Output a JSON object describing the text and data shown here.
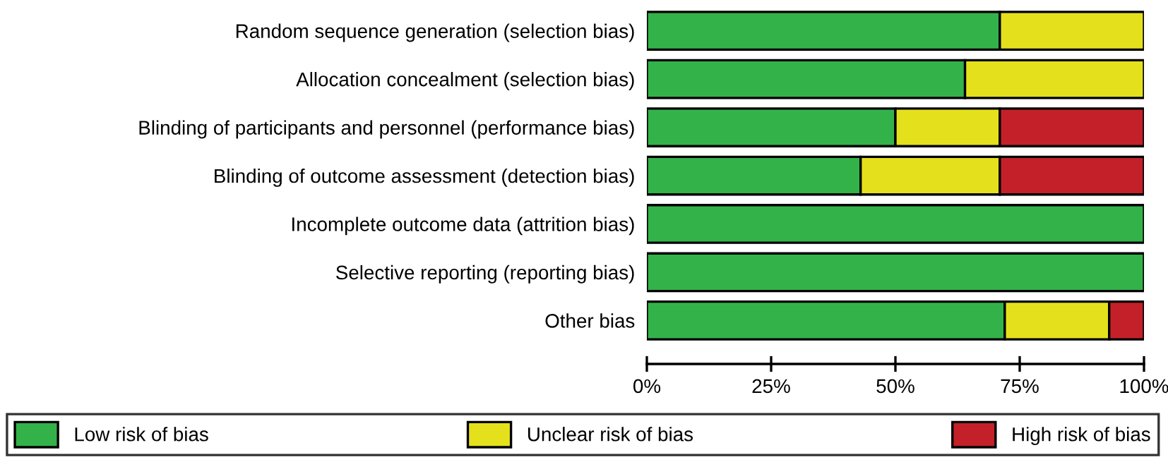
{
  "chart_data": {
    "type": "bar",
    "orientation": "horizontal",
    "stacked": true,
    "categories": [
      "Random sequence generation (selection bias)",
      "Allocation concealment (selection bias)",
      "Blinding of participants and personnel (performance bias)",
      "Blinding of outcome assessment (detection bias)",
      "Incomplete outcome data (attrition bias)",
      "Selective reporting (reporting bias)",
      "Other bias"
    ],
    "series": [
      {
        "name": "Low risk of bias",
        "color": "#33b24a",
        "values": [
          71,
          64,
          50,
          43,
          100,
          100,
          72
        ]
      },
      {
        "name": "Unclear risk of bias",
        "color": "#e5e01c",
        "values": [
          29,
          36,
          21,
          28,
          null,
          null,
          21
        ]
      },
      {
        "name": "High risk of bias",
        "color": "#c4202a",
        "values": [
          null,
          null,
          29,
          29,
          null,
          null,
          7
        ]
      }
    ],
    "xlim": [
      0,
      100
    ],
    "xticks": [
      {
        "value": 0,
        "label": "0%"
      },
      {
        "value": 25,
        "label": "25%"
      },
      {
        "value": 50,
        "label": "50%"
      },
      {
        "value": 75,
        "label": "75%"
      },
      {
        "value": 100,
        "label": "100%"
      }
    ],
    "grid": false,
    "legend": "bottom"
  }
}
